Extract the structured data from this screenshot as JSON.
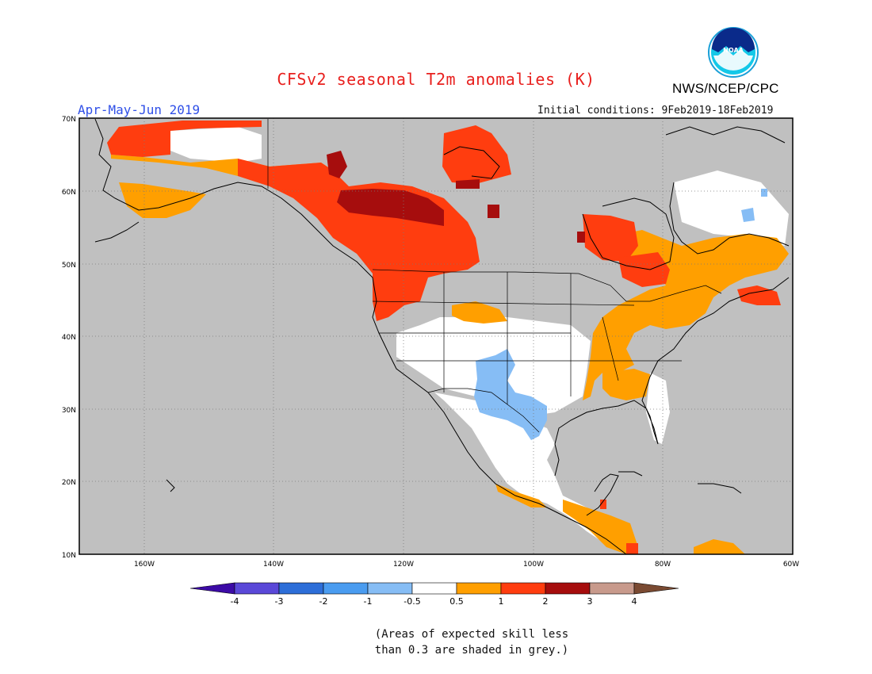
{
  "header": {
    "title": "CFSv2 seasonal T2m anomalies (K)",
    "credit": "NWS/NCEP/CPC",
    "logo_text": "NOAA",
    "period": "Apr-May-Jun 2019",
    "initial_conditions": "Initial conditions: 9Feb2019-18Feb2019"
  },
  "map": {
    "region": "North America",
    "lat_labels": [
      "70N",
      "60N",
      "50N",
      "40N",
      "30N",
      "20N",
      "10N"
    ],
    "lon_labels": [
      "160W",
      "140W",
      "120W",
      "100W",
      "80W",
      "60W"
    ],
    "grid": "dotted",
    "background_color": "#c0c0c0"
  },
  "colorbar": {
    "labels": [
      "-4",
      "-3",
      "-2",
      "-1",
      "-0.5",
      "0.5",
      "1",
      "2",
      "3",
      "4"
    ],
    "colors": [
      "#3c0ba6",
      "#5a48d8",
      "#2d6ed8",
      "#4a9cf0",
      "#86bdf5",
      "#ffffff",
      "#ff9f00",
      "#ff3d0f",
      "#a60d0d",
      "#c89a8c",
      "#7a4a32"
    ],
    "units": "K"
  },
  "note": {
    "line1": "(Areas of expected skill less",
    "line2": "than 0.3 are shaded in grey.)"
  }
}
